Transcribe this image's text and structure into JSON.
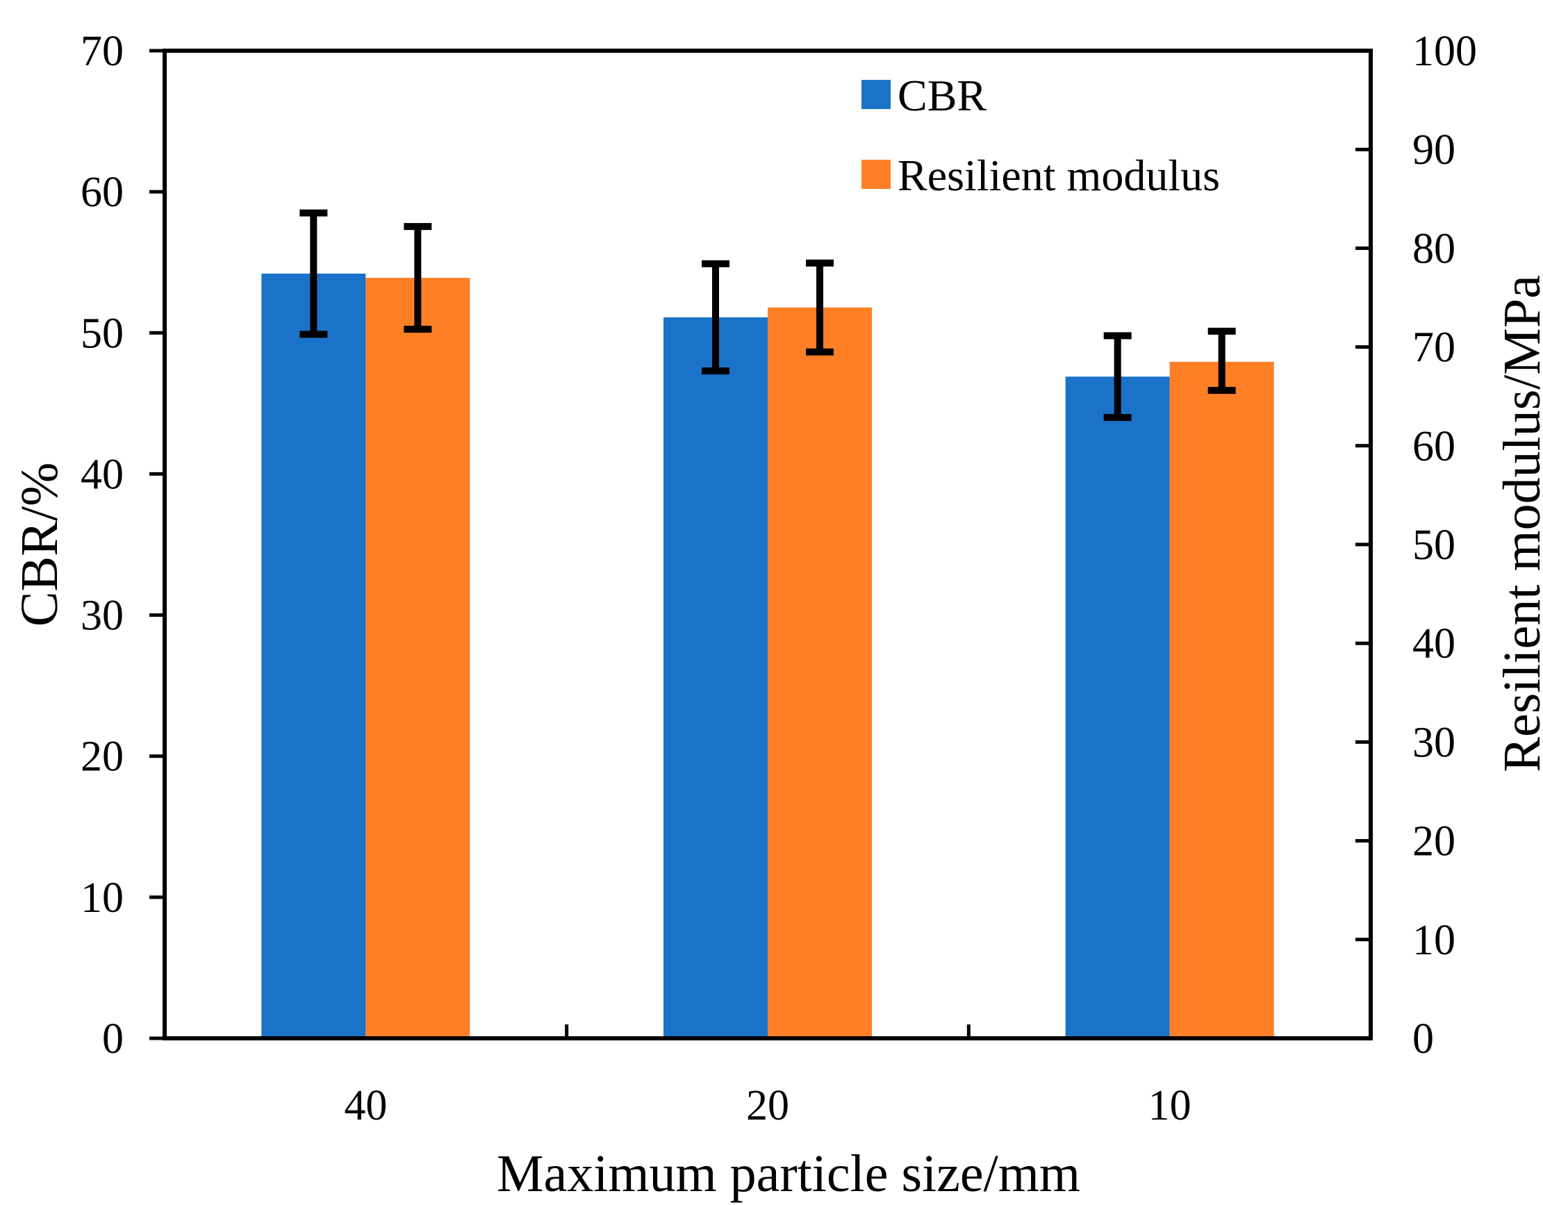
{
  "chart_data": {
    "type": "bar",
    "xlabel": "Maximum particle size/mm",
    "ylabel": "CBR/%",
    "y2label": "Resilient modulus/MPa",
    "categories": [
      "40",
      "20",
      "10"
    ],
    "ylim": [
      0,
      70
    ],
    "y2lim": [
      0,
      100
    ],
    "yticks": [
      "0",
      "10",
      "20",
      "30",
      "40",
      "50",
      "60",
      "70"
    ],
    "y2ticks": [
      "0",
      "10",
      "20",
      "30",
      "40",
      "50",
      "60",
      "70",
      "80",
      "90",
      "100"
    ],
    "legend_position": "top-right",
    "grid": false,
    "series": [
      {
        "name": "CBR",
        "axis": "left",
        "color": "#1a73c8",
        "values": [
          54.2,
          51.1,
          46.9
        ],
        "error_low": [
          49.9,
          47.3,
          44.0
        ],
        "error_high": [
          58.5,
          54.9,
          49.8
        ]
      },
      {
        "name": "Resilient modulus",
        "axis": "right",
        "color": "#ff7f27",
        "values": [
          77.0,
          74.0,
          68.5
        ],
        "error_low": [
          71.8,
          69.5,
          65.6
        ],
        "error_high": [
          82.2,
          78.5,
          71.6
        ]
      }
    ]
  }
}
